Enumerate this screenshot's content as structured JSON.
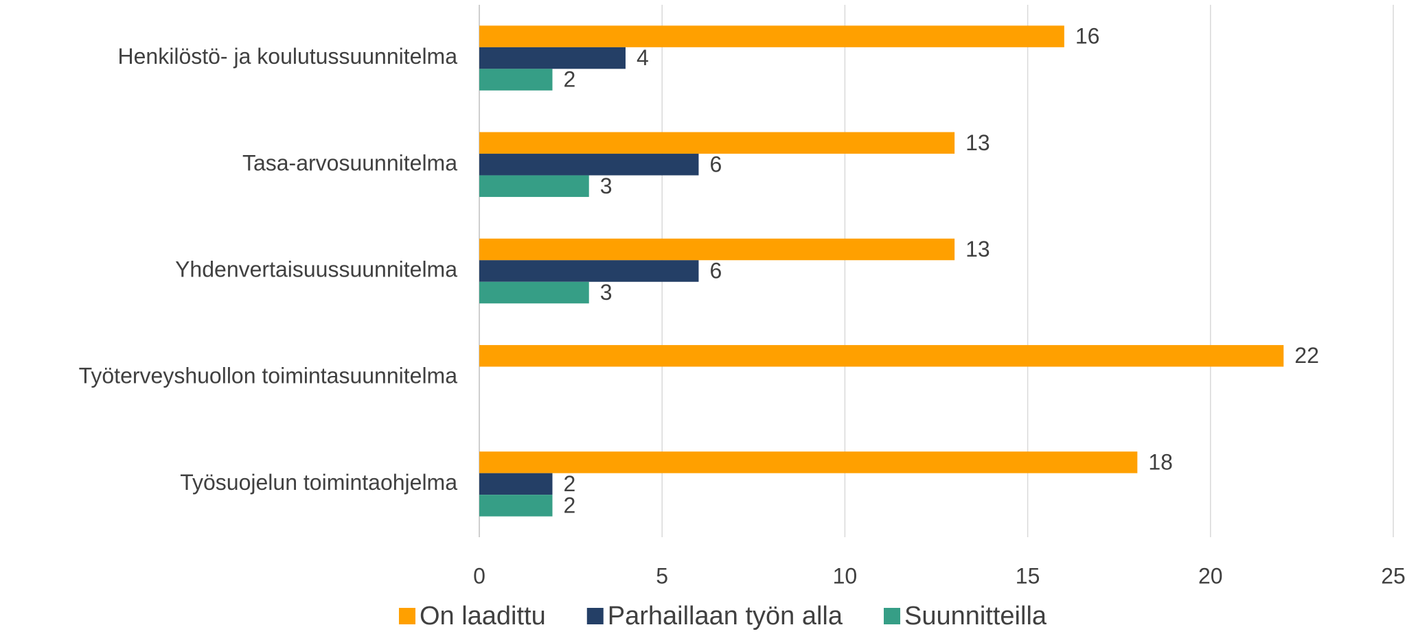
{
  "chart_data": {
    "type": "hbar",
    "categories": [
      "Henkilöstö- ja koulutussuunnitelma",
      "Tasa-arvosuunnitelma",
      "Yhdenvertaisuussuunnitelma",
      "Työterveyshuollon toimintasuunnitelma",
      "Työsuojelun toimintaohjelma"
    ],
    "series": [
      {
        "name": "On laadittu",
        "color": "#ffa000",
        "values": [
          16,
          13,
          13,
          22,
          18
        ]
      },
      {
        "name": "Parhaillaan työn alla",
        "color": "#243f66",
        "values": [
          4,
          6,
          6,
          null,
          2
        ]
      },
      {
        "name": "Suunnitteilla",
        "color": "#369e86",
        "values": [
          2,
          3,
          3,
          null,
          2
        ]
      }
    ],
    "xlim": [
      0,
      25
    ],
    "xticks": [
      0,
      5,
      10,
      15,
      20,
      25
    ],
    "grid": true,
    "legend": "bottom"
  }
}
